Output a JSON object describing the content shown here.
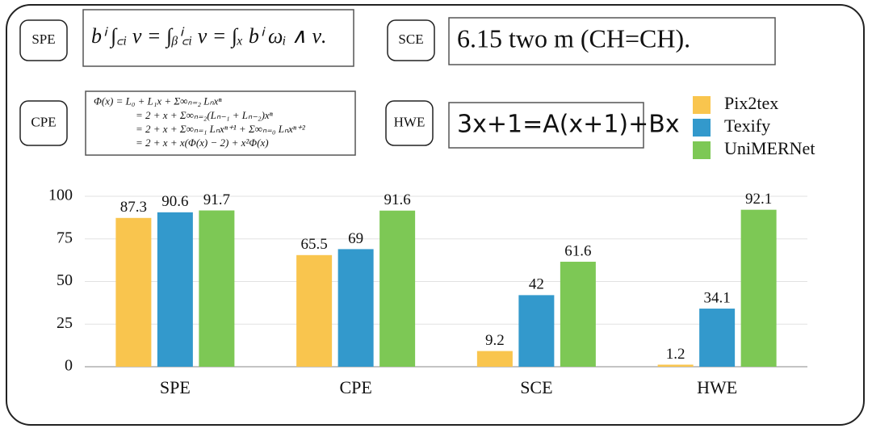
{
  "examples": [
    {
      "label": "SPE",
      "formula_lines": [
        "bⁱ ∫꜀ᵢ ν = ∫ᵦⁱ꜀ᵢ ν = ∫ₓ bⁱ ωᵢ ∧ ν."
      ]
    },
    {
      "label": "SCE",
      "formula_lines": [
        "6.15  two  m  (CH=CH)."
      ]
    },
    {
      "label": "CPE",
      "formula_lines": [
        "Φ(x)   = L₀ + L₁x + Σ∞ₙ₌₂ Lₙxⁿ",
        "= 2 + x + Σ∞ₙ₌₂(Lₙ₋₁ + Lₙ₋₂)xⁿ",
        "= 2 + x + Σ∞ₙ₌₁ Lₙxⁿ⁺¹ + Σ∞ₙ₌₀ Lₙxⁿ⁺²",
        "= 2 + x + x(Φ(x) − 2) + x²Φ(x)"
      ]
    },
    {
      "label": "HWE",
      "formula_lines": [
        "3x+1=A(x+1)+Bx"
      ]
    }
  ],
  "chart_data": {
    "type": "bar",
    "categories": [
      "SPE",
      "CPE",
      "SCE",
      "HWE"
    ],
    "series": [
      {
        "name": "Pix2tex",
        "color": "#f9c54e",
        "values": [
          87.3,
          65.5,
          9.2,
          1.2
        ]
      },
      {
        "name": "Texify",
        "color": "#3399cc",
        "values": [
          90.6,
          69,
          42,
          34.1
        ]
      },
      {
        "name": "UniMERNet",
        "color": "#7dc855",
        "values": [
          91.7,
          91.6,
          61.6,
          92.1
        ]
      }
    ],
    "ylim": [
      0,
      100
    ],
    "yticks": [
      0,
      25,
      50,
      75,
      100
    ],
    "grid": true,
    "legend": "top-right"
  }
}
